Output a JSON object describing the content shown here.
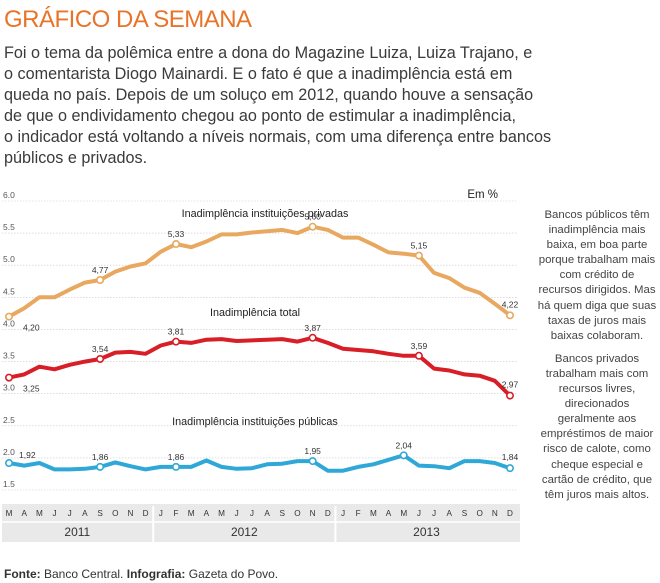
{
  "header": {
    "title": "GRÁFICO DA SEMANA",
    "intro": "Foi o tema da polêmica entre a dona do Magazine Luiza, Luiza Trajano, e\no comentarista Diogo Mainardi. E o fato é que a inadimplência está em\nqueda no país. Depois de um soluço em 2012, quando houve a sensação\nde que o endividamento chegou ao ponto de estimular a inadimplência,\no indicador está voltando a níveis normais, com uma diferença entre bancos\npúblicos e privados."
  },
  "sidebar": {
    "paragraph_1": "Bancos públicos têm inadimplência mais baixa, em boa parte porque trabalham mais com crédito de recursos dirigidos. Mas há quem diga que suas taxas de juros mais baixas colaboram.",
    "paragraph_2": "Bancos privados trabalham mais com recursos livres, direcionados geralmente aos empréstimos de maior risco de calote, como cheque especial e cartão de crédito, que têm juros mais altos."
  },
  "footer": {
    "source_label": "Fonte:",
    "source": "Banco Central.",
    "infographic_label": "Infografia:",
    "infographic": "Gazeta do Povo."
  },
  "chart_data": {
    "type": "line",
    "unit_label": "Em %",
    "ylim": [
      1.5,
      6.0
    ],
    "yticks": [
      "6.0",
      "5.5",
      "5.0",
      "4.5",
      "4.0",
      "3.5",
      "3.0",
      "2.5",
      "2.0",
      "1.5"
    ],
    "months": [
      "M",
      "A",
      "M",
      "J",
      "J",
      "A",
      "S",
      "O",
      "N",
      "D",
      "J",
      "F",
      "M",
      "A",
      "M",
      "J",
      "J",
      "A",
      "S",
      "O",
      "N",
      "D",
      "J",
      "F",
      "M",
      "A",
      "M",
      "J",
      "J",
      "A",
      "S",
      "O",
      "N",
      "D"
    ],
    "years": [
      "2011",
      "2012",
      "2013"
    ],
    "colors": {
      "privadas": "#e8a860",
      "total": "#d81e27",
      "publicas": "#2fa8d8"
    },
    "series": [
      {
        "key": "privadas",
        "name": "Inadimplência instituições privadas",
        "values": [
          4.2,
          4.33,
          4.5,
          4.5,
          4.62,
          4.73,
          4.77,
          4.9,
          4.98,
          5.03,
          5.21,
          5.33,
          5.28,
          5.37,
          5.48,
          5.48,
          5.51,
          5.53,
          5.55,
          5.5,
          5.6,
          5.55,
          5.43,
          5.43,
          5.32,
          5.2,
          5.18,
          5.15,
          4.88,
          4.8,
          4.65,
          4.57,
          4.4,
          4.22
        ],
        "labels": [
          {
            "i": 0,
            "text": "4,20"
          },
          {
            "i": 6,
            "text": "4,77"
          },
          {
            "i": 11,
            "text": "5,33"
          },
          {
            "i": 20,
            "text": "5,60"
          },
          {
            "i": 27,
            "text": "5,15"
          },
          {
            "i": 33,
            "text": "4,22"
          }
        ]
      },
      {
        "key": "total",
        "name": "Inadimplência total",
        "values": [
          3.25,
          3.3,
          3.42,
          3.38,
          3.45,
          3.5,
          3.54,
          3.64,
          3.65,
          3.62,
          3.75,
          3.81,
          3.79,
          3.84,
          3.85,
          3.82,
          3.83,
          3.84,
          3.85,
          3.81,
          3.87,
          3.79,
          3.7,
          3.68,
          3.66,
          3.62,
          3.59,
          3.59,
          3.39,
          3.36,
          3.3,
          3.28,
          3.2,
          2.97
        ],
        "labels": [
          {
            "i": 0,
            "text": "3,25"
          },
          {
            "i": 6,
            "text": "3,54"
          },
          {
            "i": 11,
            "text": "3,81"
          },
          {
            "i": 20,
            "text": "3,87"
          },
          {
            "i": 27,
            "text": "3,59"
          },
          {
            "i": 33,
            "text": "2,97"
          }
        ]
      },
      {
        "key": "publicas",
        "name": "Inadimplência instituições públicas",
        "values": [
          1.92,
          1.88,
          1.92,
          1.82,
          1.82,
          1.83,
          1.86,
          1.93,
          1.87,
          1.82,
          1.86,
          1.86,
          1.86,
          1.96,
          1.86,
          1.83,
          1.84,
          1.9,
          1.91,
          1.95,
          1.95,
          1.8,
          1.8,
          1.86,
          1.9,
          1.97,
          2.04,
          1.88,
          1.87,
          1.84,
          1.95,
          1.95,
          1.92,
          1.84
        ],
        "labels": [
          {
            "i": 0,
            "text": "1,92"
          },
          {
            "i": 6,
            "text": "1,86"
          },
          {
            "i": 11,
            "text": "1,86"
          },
          {
            "i": 20,
            "text": "1,95"
          },
          {
            "i": 26,
            "text": "2,04"
          },
          {
            "i": 33,
            "text": "1,84"
          }
        ]
      }
    ]
  }
}
